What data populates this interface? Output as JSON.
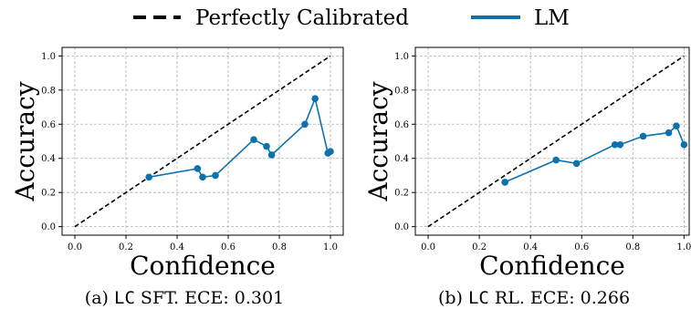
{
  "legend": {
    "perfect_label": "Perfectly Calibrated",
    "lm_label": "LM"
  },
  "colors": {
    "lm": "#0b72ae",
    "perfect": "#000000",
    "grid": "#b0b0b0"
  },
  "chart_data": [
    {
      "type": "line",
      "caption_prefix": "(a) ",
      "caption_mono": "LC",
      "caption_suffix": " SFT. ECE: 0.301",
      "xlabel": "Confidence",
      "ylabel": "Accuracy",
      "xlim": [
        -0.05,
        1.05
      ],
      "ylim": [
        -0.05,
        1.05
      ],
      "xticks": [
        "0.0",
        "0.2",
        "0.4",
        "0.6",
        "0.8",
        "1.0"
      ],
      "yticks": [
        "0.0",
        "0.2",
        "0.4",
        "0.6",
        "0.8",
        "1.0"
      ],
      "grid": true,
      "series": [
        {
          "name": "LM",
          "x": [
            0.29,
            0.48,
            0.5,
            0.55,
            0.7,
            0.75,
            0.77,
            0.9,
            0.94,
            0.99,
            1.0
          ],
          "y": [
            0.29,
            0.34,
            0.29,
            0.3,
            0.51,
            0.47,
            0.42,
            0.6,
            0.75,
            0.43,
            0.44
          ]
        },
        {
          "name": "Perfectly Calibrated",
          "x": [
            0,
            1
          ],
          "y": [
            0,
            1
          ]
        }
      ]
    },
    {
      "type": "line",
      "caption_prefix": "(b) ",
      "caption_mono": "LC",
      "caption_suffix": " RL. ECE: 0.266",
      "xlabel": "Confidence",
      "ylabel": "Accuracy",
      "xlim": [
        -0.05,
        1.02
      ],
      "ylim": [
        -0.05,
        1.05
      ],
      "xticks": [
        "0.0",
        "0.2",
        "0.4",
        "0.6",
        "0.8",
        "1.0"
      ],
      "yticks": [
        "0.0",
        "0.2",
        "0.4",
        "0.6",
        "0.8",
        "1.0"
      ],
      "grid": true,
      "series": [
        {
          "name": "LM",
          "x": [
            0.3,
            0.5,
            0.58,
            0.73,
            0.75,
            0.84,
            0.94,
            0.97,
            1.0
          ],
          "y": [
            0.26,
            0.39,
            0.37,
            0.48,
            0.48,
            0.53,
            0.55,
            0.59,
            0.48
          ]
        },
        {
          "name": "Perfectly Calibrated",
          "x": [
            0,
            1
          ],
          "y": [
            0,
            1
          ]
        }
      ]
    }
  ]
}
